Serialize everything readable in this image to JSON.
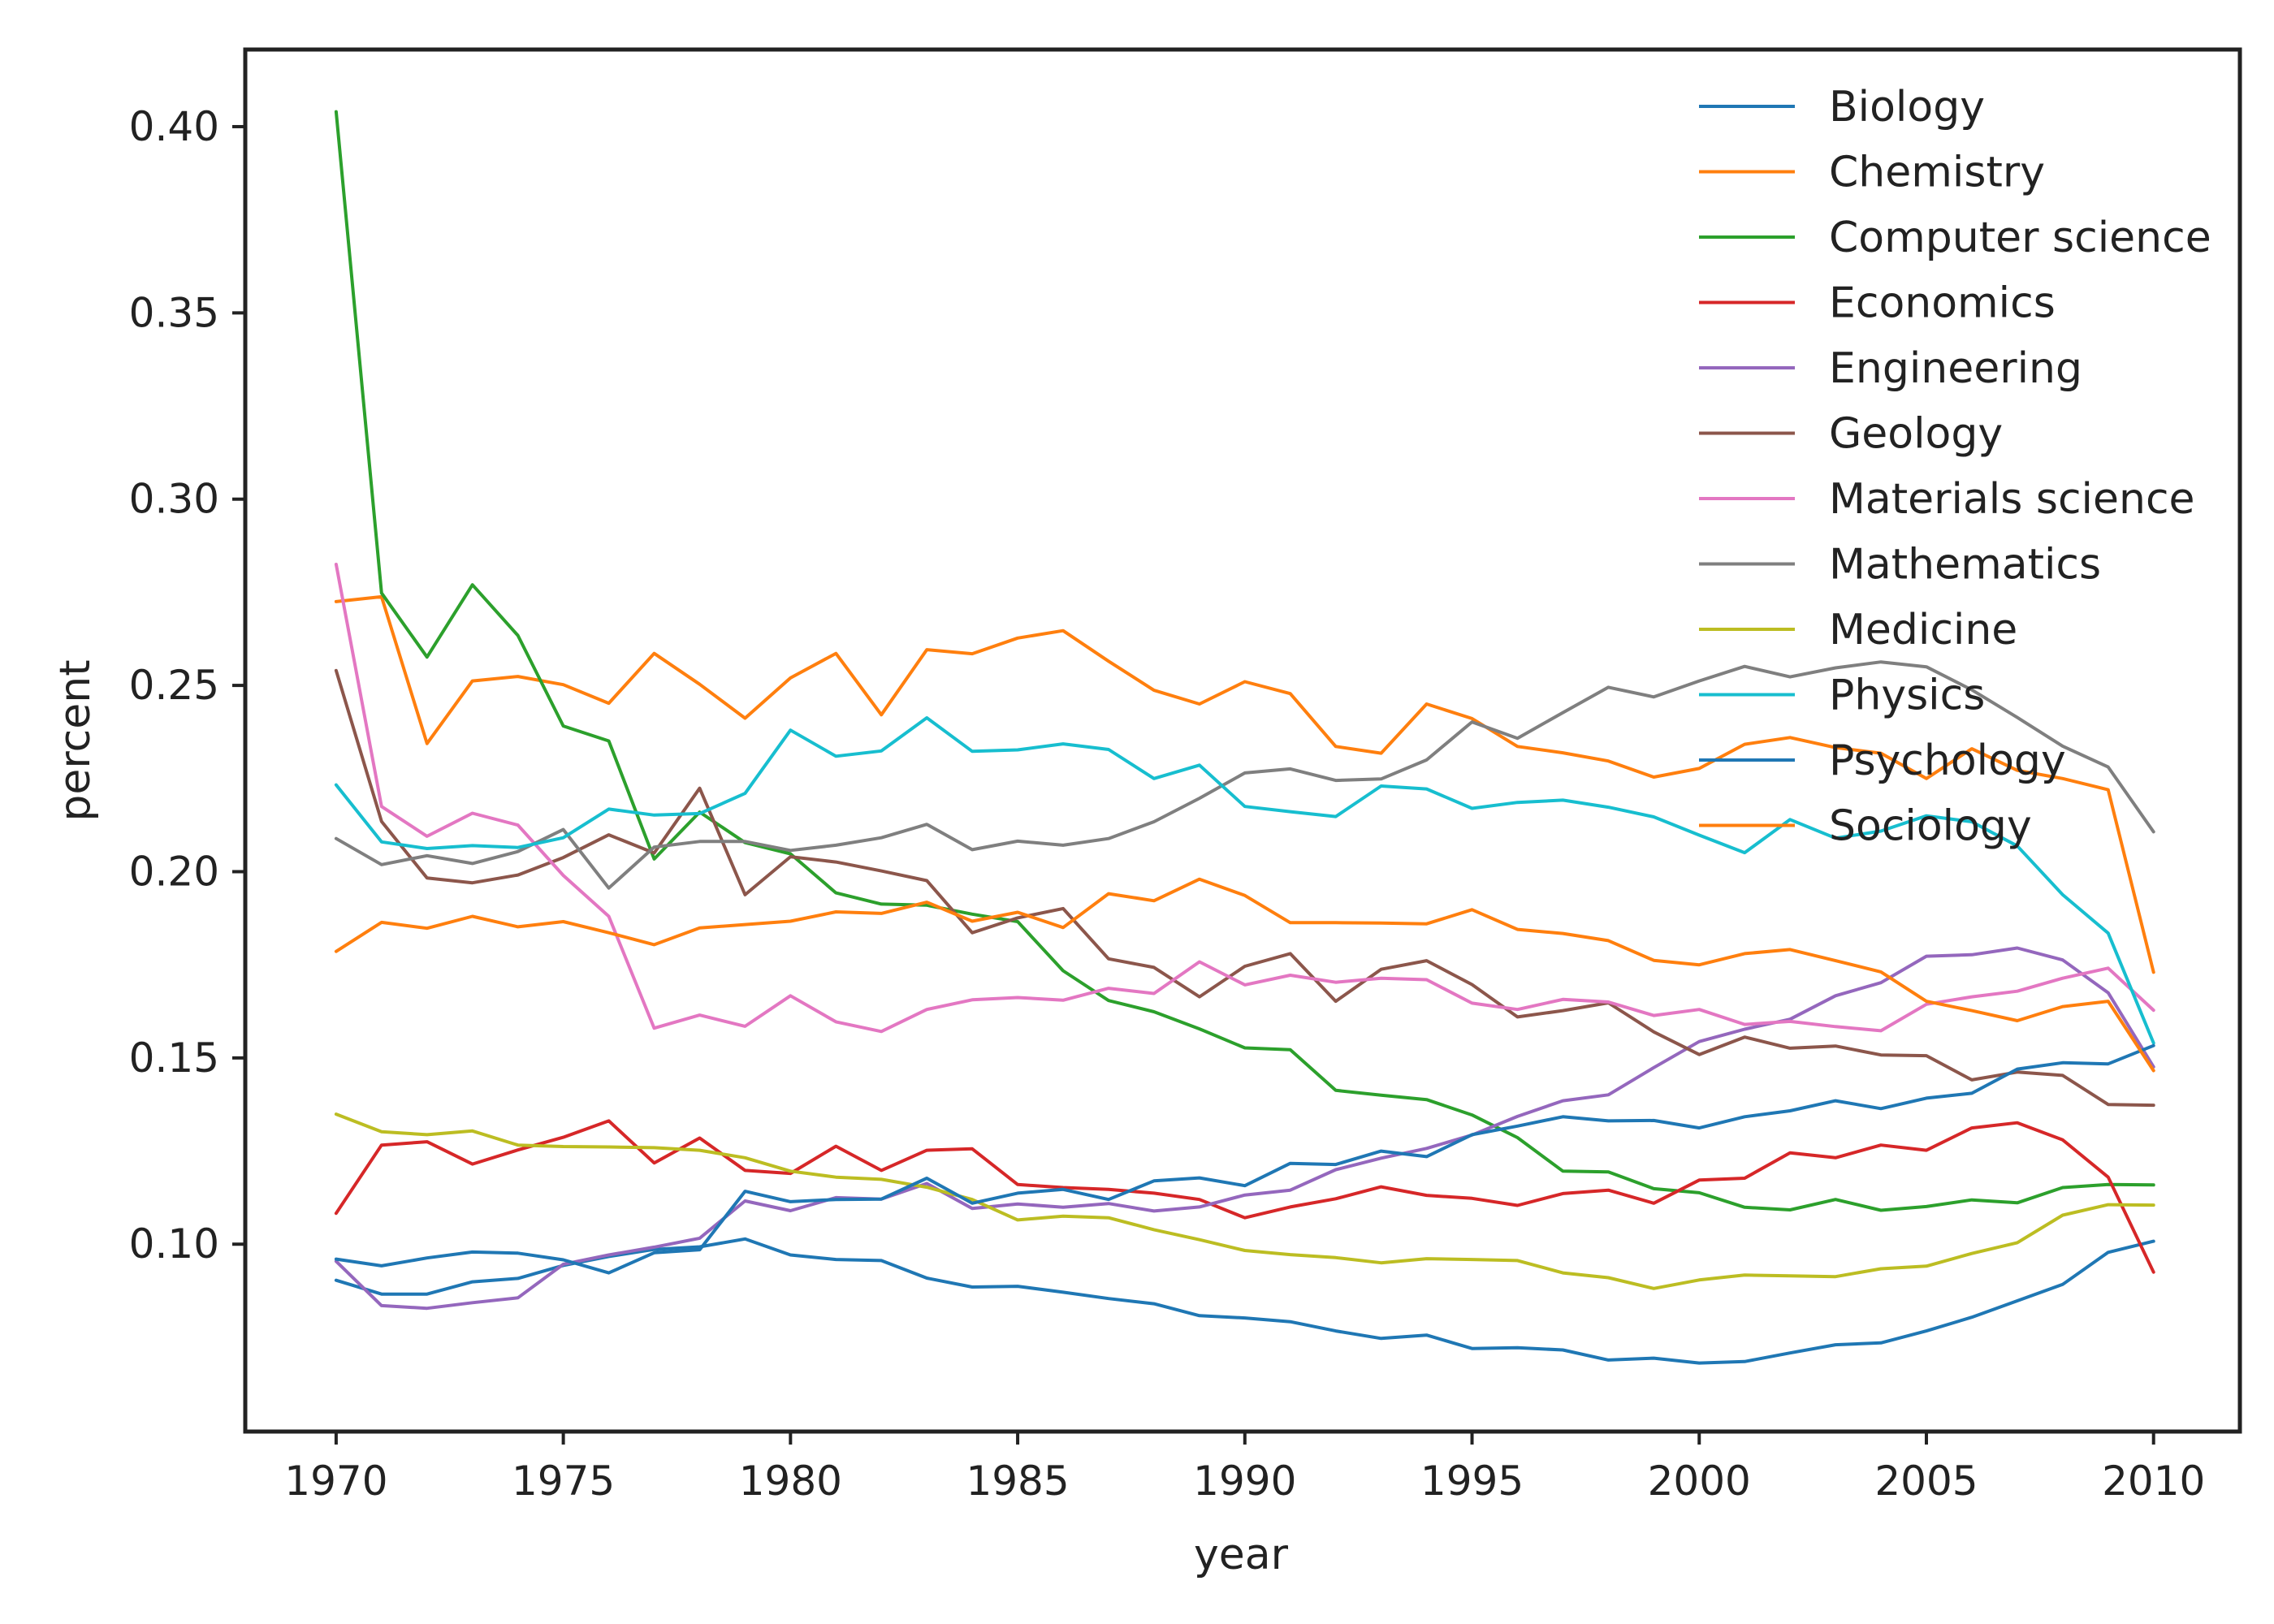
{
  "chart_data": {
    "type": "line",
    "title": "",
    "xlabel": "year",
    "ylabel": "percent",
    "xlim": [
      1968,
      2011.9
    ],
    "ylim": [
      0.0497,
      0.4207
    ],
    "xticks": [
      1970,
      1975,
      1980,
      1985,
      1990,
      1995,
      2000,
      2005,
      2010
    ],
    "xtick_labels": [
      "1970",
      "1975",
      "1980",
      "1985",
      "1990",
      "1995",
      "2000",
      "2005",
      "2010"
    ],
    "yticks": [
      0.1,
      0.15,
      0.2,
      0.25,
      0.3,
      0.35,
      0.4
    ],
    "ytick_labels": [
      "0.10",
      "0.15",
      "0.20",
      "0.25",
      "0.30",
      "0.35",
      "0.40"
    ],
    "grid": false,
    "legend_position": "top-right",
    "x": [
      1970,
      1971,
      1972,
      1973,
      1974,
      1975,
      1976,
      1977,
      1978,
      1979,
      1980,
      1981,
      1982,
      1983,
      1984,
      1985,
      1986,
      1987,
      1988,
      1989,
      1990,
      1991,
      1992,
      1993,
      1994,
      1995,
      1996,
      1997,
      1998,
      1999,
      2000,
      2001,
      2002,
      2003,
      2004,
      2005,
      2006,
      2007,
      2008,
      2009,
      2010
    ],
    "series": [
      {
        "name": "Biology",
        "color": "#1f77b4",
        "values": [
          0.0903,
          0.0866,
          0.0866,
          0.0899,
          0.0908,
          0.0943,
          0.0967,
          0.0986,
          0.0993,
          0.1014,
          0.0971,
          0.0959,
          0.0956,
          0.0909,
          0.0885,
          0.0887,
          0.0871,
          0.0854,
          0.084,
          0.0808,
          0.0802,
          0.0792,
          0.0767,
          0.0747,
          0.0756,
          0.072,
          0.0722,
          0.0716,
          0.0689,
          0.0694,
          0.0681,
          0.0685,
          0.0708,
          0.073,
          0.0735,
          0.0767,
          0.0804,
          0.0848,
          0.0892,
          0.0978,
          0.1008
        ]
      },
      {
        "name": "Chemistry",
        "color": "#ff7f0e",
        "values": [
          0.2725,
          0.2738,
          0.2344,
          0.2512,
          0.2524,
          0.2502,
          0.2452,
          0.2586,
          0.2503,
          0.2412,
          0.252,
          0.2586,
          0.2421,
          0.2596,
          0.2585,
          0.2627,
          0.2647,
          0.2565,
          0.2487,
          0.245,
          0.251,
          0.2478,
          0.2336,
          0.2318,
          0.245,
          0.2411,
          0.2336,
          0.2319,
          0.2297,
          0.2254,
          0.2277,
          0.2342,
          0.236,
          0.2333,
          0.2318,
          0.225,
          0.233,
          0.2272,
          0.225,
          0.222,
          0.173
        ]
      },
      {
        "name": "Computer science",
        "color": "#2ca02c",
        "values": [
          0.404,
          0.2748,
          0.2576,
          0.277,
          0.2634,
          0.2391,
          0.2351,
          0.2034,
          0.216,
          0.2078,
          0.2048,
          0.1943,
          0.1913,
          0.191,
          0.1886,
          0.1866,
          0.1734,
          0.1654,
          0.1624,
          0.1578,
          0.1527,
          0.1522,
          0.1413,
          0.14,
          0.1388,
          0.1347,
          0.1286,
          0.1196,
          0.1194,
          0.1149,
          0.1138,
          0.1099,
          0.1092,
          0.112,
          0.1091,
          0.1101,
          0.1119,
          0.1111,
          0.1152,
          0.116,
          0.1159
        ]
      },
      {
        "name": "Economics",
        "color": "#d62728",
        "values": [
          0.1083,
          0.1266,
          0.1275,
          0.1215,
          0.1253,
          0.1287,
          0.1331,
          0.1218,
          0.1285,
          0.1198,
          0.119,
          0.1263,
          0.1198,
          0.1252,
          0.1256,
          0.116,
          0.1152,
          0.1147,
          0.1137,
          0.112,
          0.1071,
          0.11,
          0.1122,
          0.1154,
          0.1131,
          0.1123,
          0.1104,
          0.1136,
          0.1145,
          0.111,
          0.1172,
          0.1177,
          0.1245,
          0.1232,
          0.1266,
          0.1252,
          0.1312,
          0.1326,
          0.128,
          0.118,
          0.0925
        ]
      },
      {
        "name": "Engineering",
        "color": "#9467bd",
        "values": [
          0.0954,
          0.0835,
          0.0828,
          0.0843,
          0.0856,
          0.0946,
          0.0971,
          0.0992,
          0.1016,
          0.1116,
          0.109,
          0.1125,
          0.1121,
          0.1163,
          0.1096,
          0.1108,
          0.1099,
          0.1109,
          0.1089,
          0.11,
          0.1132,
          0.1145,
          0.12,
          0.1231,
          0.1257,
          0.1293,
          0.1343,
          0.1385,
          0.1401,
          0.1474,
          0.1544,
          0.1577,
          0.1604,
          0.1667,
          0.1702,
          0.1773,
          0.1777,
          0.1795,
          0.1763,
          0.1675,
          0.1476
        ]
      },
      {
        "name": "Geology",
        "color": "#8c564b",
        "values": [
          0.254,
          0.2135,
          0.1983,
          0.197,
          0.1991,
          0.2038,
          0.2099,
          0.205,
          0.2224,
          0.1938,
          0.204,
          0.2026,
          0.2002,
          0.1976,
          0.1836,
          0.1876,
          0.1901,
          0.1766,
          0.1743,
          0.1664,
          0.1746,
          0.178,
          0.1652,
          0.1738,
          0.1761,
          0.1697,
          0.161,
          0.1627,
          0.1648,
          0.157,
          0.1509,
          0.1556,
          0.1526,
          0.1532,
          0.1508,
          0.1506,
          0.1441,
          0.1462,
          0.1453,
          0.1375,
          0.1373
        ]
      },
      {
        "name": "Materials science",
        "color": "#e377c2",
        "values": [
          0.2825,
          0.2175,
          0.2095,
          0.2157,
          0.2125,
          0.199,
          0.188,
          0.158,
          0.1615,
          0.1585,
          0.1667,
          0.1597,
          0.1571,
          0.163,
          0.1656,
          0.1662,
          0.1655,
          0.1687,
          0.1673,
          0.1758,
          0.1696,
          0.1722,
          0.1703,
          0.1714,
          0.171,
          0.1647,
          0.163,
          0.1657,
          0.165,
          0.1614,
          0.163,
          0.159,
          0.1598,
          0.1584,
          0.1573,
          0.1644,
          0.1664,
          0.1679,
          0.1714,
          0.1741,
          0.1628
        ]
      },
      {
        "name": "Mathematics",
        "color": "#7f7f7f",
        "values": [
          0.2089,
          0.2019,
          0.2043,
          0.2022,
          0.2054,
          0.2113,
          0.1956,
          0.2066,
          0.2081,
          0.2081,
          0.2057,
          0.2071,
          0.2091,
          0.2127,
          0.2059,
          0.2082,
          0.2071,
          0.2089,
          0.2134,
          0.2197,
          0.2265,
          0.2276,
          0.2245,
          0.2249,
          0.23,
          0.2402,
          0.2358,
          0.2427,
          0.2495,
          0.2469,
          0.2512,
          0.2551,
          0.2523,
          0.2547,
          0.2563,
          0.255,
          0.2488,
          0.2414,
          0.2337,
          0.2281,
          0.2107
        ]
      },
      {
        "name": "Medicine",
        "color": "#bcbd22",
        "values": [
          0.1349,
          0.1302,
          0.1294,
          0.1304,
          0.1266,
          0.1262,
          0.1261,
          0.1259,
          0.1252,
          0.1232,
          0.1196,
          0.118,
          0.1174,
          0.1153,
          0.112,
          0.1065,
          0.1075,
          0.1071,
          0.1039,
          0.1012,
          0.0983,
          0.0972,
          0.0964,
          0.095,
          0.0961,
          0.0959,
          0.0956,
          0.0923,
          0.091,
          0.0881,
          0.0904,
          0.0917,
          0.0915,
          0.0913,
          0.0934,
          0.0941,
          0.0975,
          0.1004,
          0.1078,
          0.1106,
          0.1105
        ]
      },
      {
        "name": "Physics",
        "color": "#17becf",
        "values": [
          0.2233,
          0.208,
          0.2062,
          0.207,
          0.2065,
          0.2091,
          0.2168,
          0.2152,
          0.2156,
          0.221,
          0.238,
          0.231,
          0.2324,
          0.2413,
          0.2323,
          0.2327,
          0.2343,
          0.2328,
          0.225,
          0.2286,
          0.2175,
          0.2161,
          0.2148,
          0.223,
          0.2222,
          0.217,
          0.2186,
          0.2192,
          0.2173,
          0.2147,
          0.2098,
          0.2051,
          0.214,
          0.209,
          0.2109,
          0.215,
          0.2134,
          0.2069,
          0.1938,
          0.1835,
          0.154
        ]
      },
      {
        "name": "Psychology",
        "color": "#1f77b4",
        "values": [
          0.096,
          0.0942,
          0.0963,
          0.0979,
          0.0976,
          0.0958,
          0.0923,
          0.0977,
          0.0985,
          0.1142,
          0.1114,
          0.112,
          0.1121,
          0.1177,
          0.111,
          0.1137,
          0.1147,
          0.112,
          0.117,
          0.1178,
          0.1157,
          0.1217,
          0.1214,
          0.125,
          0.1235,
          0.1294,
          0.1317,
          0.1342,
          0.1331,
          0.1332,
          0.1312,
          0.1342,
          0.1358,
          0.1385,
          0.1364,
          0.1392,
          0.1405,
          0.147,
          0.1487,
          0.1484,
          0.1533
        ]
      },
      {
        "name": "Sociology",
        "color": "#ff7f0e",
        "values": [
          0.1786,
          0.1864,
          0.1848,
          0.188,
          0.1852,
          0.1866,
          0.1836,
          0.1804,
          0.1849,
          0.1858,
          0.1867,
          0.1892,
          0.1888,
          0.1918,
          0.1867,
          0.1891,
          0.185,
          0.1941,
          0.1922,
          0.198,
          0.1936,
          0.1863,
          0.1863,
          0.1862,
          0.186,
          0.1898,
          0.1845,
          0.1834,
          0.1815,
          0.1762,
          0.175,
          0.178,
          0.1791,
          0.1761,
          0.1731,
          0.1652,
          0.1627,
          0.16,
          0.1638,
          0.1652,
          0.1466
        ]
      }
    ]
  }
}
